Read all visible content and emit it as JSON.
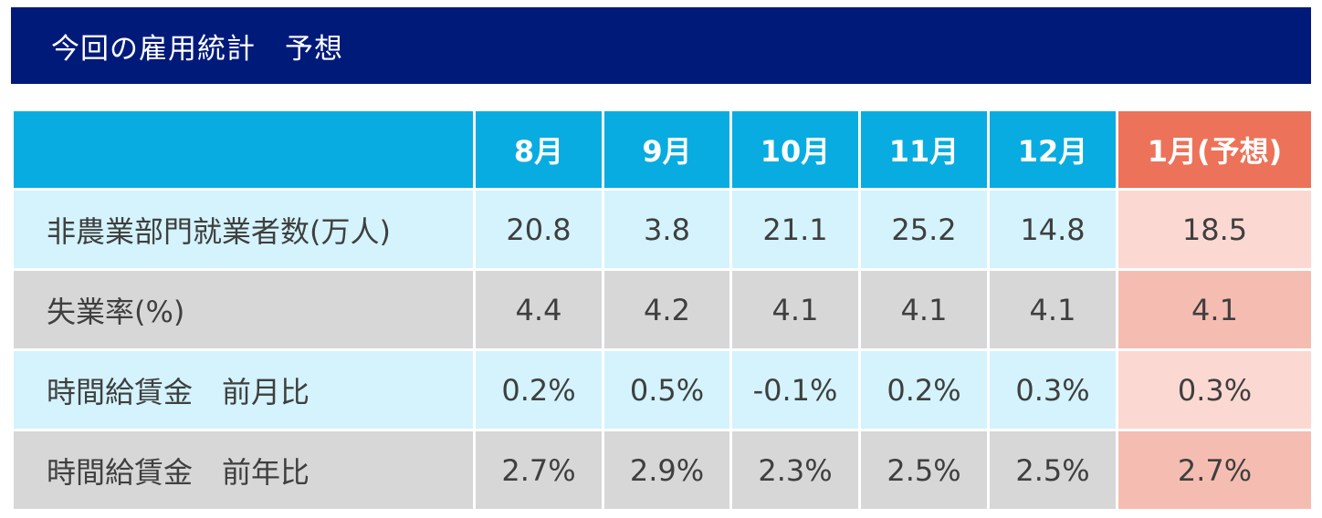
{
  "header": {
    "title": "今回の雇用統計　予想"
  },
  "chart_data": {
    "type": "table",
    "columns": [
      "",
      "8月",
      "9月",
      "10月",
      "11月",
      "12月",
      "1月(予想)"
    ],
    "rows": [
      {
        "label": "非農業部門就業者数(万人)",
        "values": [
          "20.8",
          "3.8",
          "21.1",
          "25.2",
          "14.8",
          "18.5"
        ]
      },
      {
        "label": "失業率(%)",
        "values": [
          "4.4",
          "4.2",
          "4.1",
          "4.1",
          "4.1",
          "4.1"
        ]
      },
      {
        "label": "時間給賃金　前月比",
        "values": [
          "0.2%",
          "0.5%",
          "-0.1%",
          "0.2%",
          "0.3%",
          "0.3%"
        ]
      },
      {
        "label": "時間給賃金　前年比",
        "values": [
          "2.7%",
          "2.9%",
          "2.3%",
          "2.5%",
          "2.5%",
          "2.7%"
        ]
      }
    ]
  },
  "colors": {
    "banner_bg": "#001a7a",
    "header_bg": "#08ace0",
    "forecast_header_bg": "#ec7259",
    "row_light_bg": "#d4f3fc",
    "row_gray_bg": "#d7d7d7",
    "forecast_light_bg": "#fbd9d2",
    "forecast_gray_bg": "#f5bdb1",
    "text": "#3f3f3f"
  }
}
